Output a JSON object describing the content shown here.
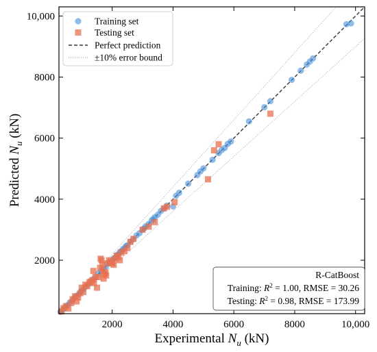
{
  "chart_data": {
    "type": "scatter",
    "xlabel_prefix": "Experimental ",
    "xlabel_symbol": "N",
    "xlabel_sub": "u",
    "xlabel_suffix": " (kN)",
    "ylabel_prefix": "Predicted ",
    "ylabel_symbol": "N",
    "ylabel_sub": "u",
    "ylabel_suffix": " (kN)",
    "xlim": [
      250,
      10300
    ],
    "ylim": [
      250,
      10300
    ],
    "x_ticks": [
      2000,
      4000,
      6000,
      8000,
      10000
    ],
    "x_tick_labels": [
      "2000",
      "4000",
      "6000",
      "8000",
      "10,000"
    ],
    "y_ticks": [
      2000,
      4000,
      6000,
      8000,
      10000
    ],
    "y_tick_labels": [
      "2000",
      "4000",
      "6000",
      "8000",
      "10,000"
    ],
    "grid": false,
    "legend_position": "top-left",
    "legend": {
      "training": "Training set",
      "testing": "Testing set",
      "perfect": "Perfect prediction",
      "error": "±10% error bound"
    },
    "colors": {
      "training": "#4a90d9",
      "testing": "#e8704f",
      "perfect": "#333333",
      "error": "#9a9a9a"
    },
    "stats": {
      "model": "R-CatBoost",
      "train_label": "Training:",
      "train_r2": " = 1.00,",
      "train_rmse": "RMSE = 30.26",
      "test_label": "Testing:",
      "test_r2": " = 0.98,",
      "test_rmse": "RMSE = 173.99",
      "r2_symbol": "R",
      "r2_power": "2"
    },
    "series": [
      {
        "name": "Training set",
        "marker": "circle",
        "x": [
          300,
          380,
          450,
          520,
          600,
          680,
          750,
          820,
          900,
          980,
          1050,
          1150,
          1250,
          1350,
          1450,
          1550,
          1650,
          1720,
          1800,
          1900,
          2000,
          2050,
          2100,
          2150,
          2200,
          2250,
          2300,
          2350,
          2400,
          2450,
          2500,
          2600,
          2700,
          2800,
          2900,
          3000,
          3050,
          3100,
          3200,
          3300,
          3350,
          3400,
          3500,
          3600,
          3700,
          3800,
          4000,
          4100,
          4200,
          4500,
          4800,
          4900,
          5000,
          5300,
          5500,
          5600,
          5700,
          5800,
          5900,
          6500,
          7000,
          7200,
          7900,
          8200,
          8400,
          8500,
          8600,
          9700,
          9850
        ],
        "y": [
          310,
          380,
          460,
          520,
          610,
          670,
          760,
          830,
          890,
          990,
          1040,
          1160,
          1240,
          1360,
          1440,
          1560,
          1640,
          1730,
          1790,
          1910,
          1990,
          2060,
          2080,
          2160,
          2190,
          2270,
          2290,
          2360,
          2390,
          2460,
          2490,
          2610,
          2690,
          2810,
          2890,
          3010,
          3040,
          3110,
          3190,
          3310,
          3340,
          3410,
          3490,
          3610,
          3690,
          3790,
          3760,
          4110,
          4210,
          4510,
          4790,
          4910,
          5010,
          5290,
          5510,
          5610,
          5680,
          5810,
          5890,
          6550,
          7010,
          7210,
          7910,
          8210,
          8410,
          8510,
          8610,
          9730,
          9760
        ]
      },
      {
        "name": "Testing set",
        "marker": "square",
        "x": [
          330,
          400,
          480,
          560,
          650,
          700,
          780,
          830,
          880,
          950,
          1000,
          1050,
          1120,
          1180,
          1250,
          1300,
          1350,
          1380,
          1400,
          1450,
          1500,
          1550,
          1600,
          1620,
          1650,
          1680,
          1700,
          1720,
          1750,
          1780,
          1800,
          1850,
          1900,
          1950,
          2000,
          2050,
          2100,
          2150,
          2200,
          2250,
          2300,
          2400,
          2500,
          2600,
          2700,
          3000,
          3200,
          3400,
          3700,
          3800,
          4050,
          5150,
          5350,
          5500,
          7200
        ],
        "y": [
          320,
          430,
          500,
          420,
          600,
          720,
          820,
          650,
          780,
          920,
          1100,
          960,
          1200,
          1150,
          1280,
          1300,
          1350,
          1650,
          1250,
          1450,
          1100,
          1450,
          1750,
          2050,
          2000,
          1850,
          1650,
          1400,
          1550,
          1600,
          1500,
          1900,
          2000,
          1950,
          1900,
          1850,
          2050,
          2150,
          2100,
          2000,
          2250,
          2300,
          2400,
          2600,
          2700,
          3000,
          3100,
          3250,
          3700,
          3750,
          3900,
          4650,
          5600,
          5800,
          6800
        ]
      }
    ]
  }
}
